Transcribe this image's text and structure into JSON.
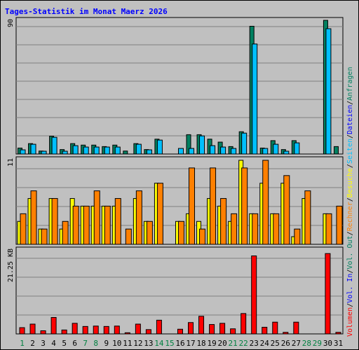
{
  "title": "Tages-Statistik im Monat Maerz 2026",
  "chart_data": {
    "type": "bar",
    "categories": [
      "1",
      "2",
      "3",
      "4",
      "5",
      "6",
      "7",
      "8",
      "9",
      "10",
      "11",
      "12",
      "13",
      "14",
      "15",
      "16",
      "17",
      "18",
      "19",
      "20",
      "21",
      "22",
      "23",
      "24",
      "25",
      "26",
      "27",
      "28",
      "29",
      "30",
      "31"
    ],
    "weekend_days": [
      "1",
      "7",
      "8",
      "14",
      "15",
      "21",
      "22",
      "28",
      "29"
    ],
    "panels": [
      {
        "id": "top",
        "y_tick_label": "90",
        "ylim": [
          0,
          90
        ],
        "series": [
          {
            "name": "Anfragen",
            "color": "#008060",
            "values": [
              4,
              7,
              2,
              12,
              3,
              7,
              6,
              6,
              5,
              6,
              2,
              7,
              3,
              10,
              0,
              0,
              13,
              13,
              10,
              8,
              5,
              15,
              86,
              4,
              9,
              3,
              9,
              0,
              0,
              90,
              5
            ]
          },
          {
            "name": "Dateien",
            "color": "#00c0ff",
            "values": [
              4,
              7,
              2,
              12,
              3,
              7,
              6,
              6,
              5,
              6,
              2,
              7,
              3,
              10,
              0,
              0,
              13,
              13,
              10,
              8,
              5,
              15,
              86,
              4,
              9,
              3,
              9,
              0,
              0,
              90,
              5
            ]
          },
          {
            "name": "Seiten",
            "color": "#00c0ff",
            "values": [
              3,
              7,
              2,
              12,
              2,
              6,
              5,
              5,
              5,
              5,
              0,
              7,
              3,
              10,
              0,
              4,
              4,
              13,
              6,
              5,
              4,
              15,
              79,
              4,
              7,
              2,
              8,
              0,
              0,
              90,
              0
            ]
          }
        ]
      },
      {
        "id": "mid",
        "y_tick_label": "11",
        "ylim": [
          0,
          11
        ],
        "series": [
          {
            "name": "Besuche",
            "color": "#ffff00",
            "values": [
              3,
              6,
              2,
              6,
              2,
              6,
              5,
              5,
              5,
              5,
              0,
              6,
              3,
              8,
              0,
              3,
              4,
              3,
              6,
              5,
              3,
              11,
              4,
              8,
              4,
              8,
              1,
              6,
              0,
              4,
              0
            ]
          },
          {
            "name": "Rechner",
            "color": "#ff8000",
            "values": [
              4,
              7,
              2,
              6,
              3,
              5,
              5,
              7,
              5,
              6,
              2,
              7,
              3,
              8,
              0,
              3,
              10,
              2,
              10,
              6,
              4,
              10,
              4,
              11,
              4,
              9,
              2,
              7,
              0,
              4,
              5
            ]
          }
        ]
      },
      {
        "id": "bottom",
        "y_tick_label": "21.25 KB",
        "ylim": [
          0,
          21.25
        ],
        "series": [
          {
            "name": "Volumen",
            "color": "#ff0000",
            "values": [
              1.6,
              2.5,
              0.8,
              4.2,
              1.0,
              2.7,
              1.9,
              2.0,
              1.9,
              2.0,
              0.3,
              2.5,
              1.1,
              3.5,
              0,
              1.2,
              2.9,
              4.5,
              2.4,
              2.7,
              1.3,
              5.2,
              19.9,
              1.7,
              3.0,
              0.4,
              3.0,
              0,
              0,
              20.5,
              0.4
            ]
          }
        ]
      }
    ],
    "legend": [
      "Volumen",
      "/",
      "Vol. In",
      "/",
      "Vol. Out",
      "/",
      "Rechner",
      "/",
      "Besuche",
      "/",
      "Seiten",
      "/",
      "Dateien",
      "/",
      "Anfragen"
    ],
    "legend_colors": [
      "#ff0000",
      "#000000",
      "#0000ff",
      "#000000",
      "#008060",
      "#000000",
      "#ff8000",
      "#000000",
      "#ffff00",
      "#000000",
      "#00c0ff",
      "#000000",
      "#0000ff",
      "#000000",
      "#008060"
    ],
    "day_label_color_weekday": "#000000",
    "day_label_color_weekend": "#008040"
  }
}
